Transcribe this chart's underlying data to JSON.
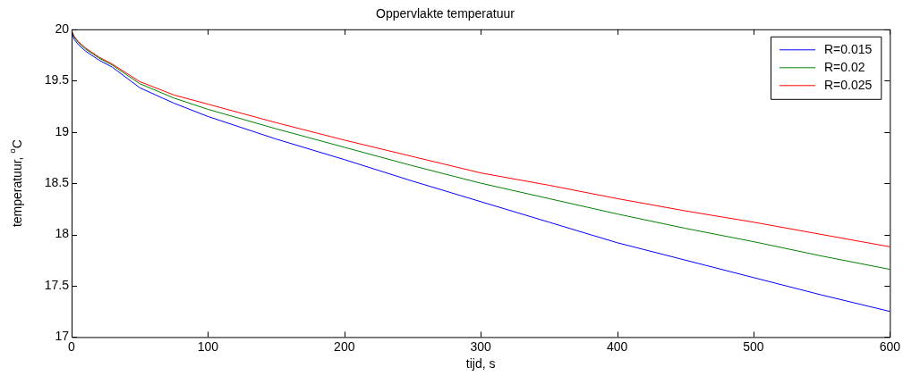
{
  "chart_data": {
    "type": "line",
    "title": "Oppervlakte temperatuur",
    "xlabel": "tijd, s",
    "ylabel": "temperatuur, $^{o}$C",
    "x": [
      0,
      2,
      5,
      10,
      20,
      30,
      50,
      75,
      100,
      150,
      200,
      250,
      300,
      350,
      400,
      450,
      500,
      550,
      600
    ],
    "series": [
      {
        "name": "R=0.015",
        "color": "#0000ff",
        "values": [
          19.97,
          19.9,
          19.85,
          19.79,
          19.7,
          19.63,
          19.43,
          19.28,
          19.15,
          18.93,
          18.73,
          18.52,
          18.32,
          18.12,
          17.92,
          17.75,
          17.58,
          17.41,
          17.25
        ]
      },
      {
        "name": "R=0.02",
        "color": "#008000",
        "values": [
          19.98,
          19.92,
          19.87,
          19.81,
          19.72,
          19.65,
          19.47,
          19.33,
          19.22,
          19.03,
          18.85,
          18.67,
          18.5,
          18.35,
          18.2,
          18.06,
          17.93,
          17.79,
          17.66
        ]
      },
      {
        "name": "R=0.025",
        "color": "#ff0000",
        "values": [
          19.99,
          19.93,
          19.88,
          19.82,
          19.73,
          19.66,
          19.49,
          19.36,
          19.27,
          19.09,
          18.92,
          18.76,
          18.6,
          18.48,
          18.35,
          18.23,
          18.12,
          18,
          17.88
        ]
      }
    ],
    "xlim": [
      0,
      600
    ],
    "xticks": [
      0,
      100,
      200,
      300,
      400,
      500,
      600
    ],
    "ylim": [
      17,
      20
    ],
    "yticks": [
      17,
      17.5,
      18,
      18.5,
      19,
      19.5,
      20
    ],
    "grid": false,
    "legend": "top right",
    "marker": "none",
    "line_style": "solid"
  }
}
